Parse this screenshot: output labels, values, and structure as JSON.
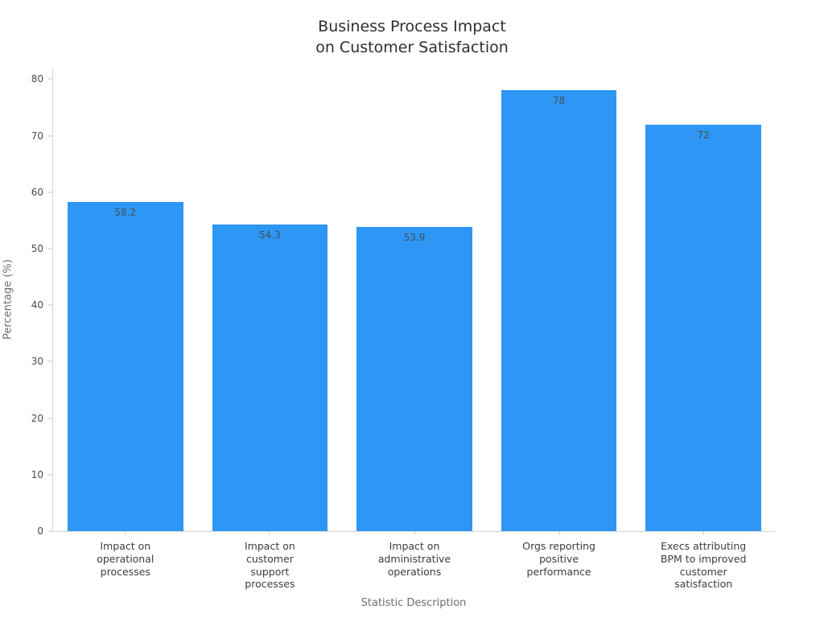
{
  "chart_data": {
    "type": "bar",
    "title": "Business Process Impact\non Customer Satisfaction",
    "xlabel": "Statistic Description",
    "ylabel": "Percentage (%)",
    "categories": [
      "Impact on operational processes",
      "Impact on customer support processes",
      "Impact on administrative operations",
      "Orgs reporting positive performance",
      "Execs attributing BPM to improved customer satisfaction"
    ],
    "category_labels_wrapped": [
      "Impact on\noperational\nprocesses",
      "Impact on\ncustomer\nsupport\nprocesses",
      "Impact on\nadministrative\noperations",
      "Orgs reporting\npositive\nperformance",
      "Execs attributing\nBPM to improved\ncustomer\nsatisfaction"
    ],
    "values": [
      58.2,
      54.3,
      53.9,
      78,
      72
    ],
    "value_labels": [
      "58.2",
      "54.3",
      "53.9",
      "78",
      "72"
    ],
    "yticks": [
      0,
      10,
      20,
      30,
      40,
      50,
      60,
      70,
      80
    ],
    "ylim": [
      0,
      81.9
    ],
    "grid": false,
    "legend": "none",
    "bar_color": "#2E96F5",
    "colors": {
      "title": "#2e2e2e",
      "tick_label": "#4a4a4a",
      "axis_label": "#6e6e6e",
      "value_label": "#44505a",
      "axis_line": "#d4d4d4"
    }
  }
}
